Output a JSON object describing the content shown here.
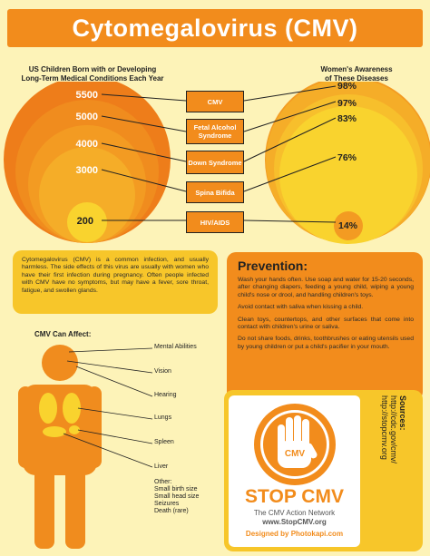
{
  "title": "Cytomegalovirus (CMV)",
  "left_caption": [
    "US Children Born with or Developing",
    "Long-Term Medical Conditions Each Year"
  ],
  "right_caption": [
    "Women's Awareness",
    "of These Diseases"
  ],
  "conditions": [
    {
      "label": "CMV",
      "children": "5500",
      "awareness": "98%"
    },
    {
      "label": "Fetal Alcohol Syndrome",
      "children": "5000",
      "awareness": "97%"
    },
    {
      "label": "Down Syndrome",
      "children": "4000",
      "awareness": "83%"
    },
    {
      "label": "Spina Bifida",
      "children": "3000",
      "awareness": "76%"
    },
    {
      "label": "HIV/AIDS",
      "children": "200",
      "awareness": "14%"
    }
  ],
  "intro_text": "Cytomegalovirus (CMV) is a common infection, and usually harmless. The side effects of this virus are usually with women who have their first infection during pregnancy. Often people infected with CMV have no symptoms, but may have a fever, sore throat, fatigue, and swollen glands.",
  "prevention": {
    "heading": "Prevention:",
    "paragraphs": [
      "Wash your hands often. Use soap and water for 15-20 seconds, after changing diapers, feeding a young child, wiping a young child's nose or drool, and handling children's toys.",
      "Avoid contact with saliva when kissing a child.",
      "Clean toys, countertops, and other surfaces that come into contact with children's urine or saliva.",
      "Do not share foods, drinks, toothbrushes or eating utensils used by young children or put a child's pacifier in your mouth."
    ]
  },
  "affects": {
    "heading": "CMV Can Affect:",
    "organs": [
      "Mental Abilities",
      "Vision",
      "Hearing",
      "Lungs",
      "Spleen",
      "Liver"
    ],
    "other": [
      "Other:",
      "Small birth size",
      "Small head size",
      "Seizures",
      "Death (rare)"
    ]
  },
  "stop": {
    "hand_label": "CMV",
    "headline": "STOP CMV",
    "network": "The CMV Action Network",
    "url": "www.StopCMV.org",
    "designed": "Designed by Photokapi.com"
  },
  "sources": {
    "heading": "Sources:",
    "links": [
      "http://cdc.gov/cmv/",
      "http://stopcmv.org"
    ]
  },
  "colors": {
    "orange": "#f28c1c",
    "yellow": "#f7c62a",
    "background": "#fdf3b8",
    "white": "#ffffff"
  }
}
